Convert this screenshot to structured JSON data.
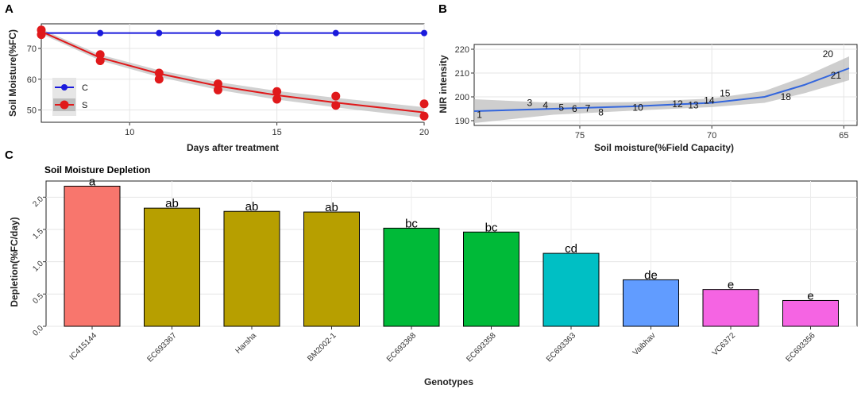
{
  "chart_data": [
    {
      "panel": "A",
      "type": "line",
      "title": "",
      "xlabel": "Days after treatment",
      "ylabel": "Soil Moisture(%FC)",
      "xlim": [
        7,
        20
      ],
      "ylim": [
        46,
        78
      ],
      "xticks": [
        10,
        15,
        20
      ],
      "yticks": [
        50,
        60,
        70
      ],
      "series": [
        {
          "name": "C",
          "color": "#1a1adc",
          "x": [
            7,
            9,
            11,
            13,
            15,
            17,
            20
          ],
          "y": [
            75,
            75,
            75,
            75,
            75,
            75,
            75
          ]
        },
        {
          "name": "S",
          "color": "#e0191b",
          "x": [
            7,
            7,
            9,
            9,
            11,
            11,
            13,
            13,
            15,
            15,
            17,
            17,
            20,
            20
          ],
          "y": [
            76,
            74.5,
            68,
            66,
            62,
            60,
            58.5,
            56.5,
            56,
            53.5,
            54.5,
            51.5,
            52,
            48
          ]
        }
      ],
      "fit_S": {
        "x": [
          7,
          9,
          11,
          13,
          15,
          17,
          20
        ],
        "y": [
          75.5,
          67,
          61.8,
          57.8,
          54.8,
          52.4,
          49.2
        ]
      },
      "legend": [
        "C",
        "S"
      ]
    },
    {
      "panel": "B",
      "type": "scatter",
      "title": "",
      "xlabel": "Soil moisture(%Field Capacity)",
      "ylabel": "NIR intensity",
      "xlim": [
        79,
        64.5
      ],
      "ylim": [
        188,
        222
      ],
      "xticks": [
        75,
        70,
        65
      ],
      "yticks": [
        190,
        200,
        210,
        220
      ],
      "points": [
        {
          "label": "1",
          "x": 78.8,
          "y": 192.5
        },
        {
          "label": "3",
          "x": 76.9,
          "y": 197.5
        },
        {
          "label": "4",
          "x": 76.3,
          "y": 196.5
        },
        {
          "label": "5",
          "x": 75.7,
          "y": 195.5
        },
        {
          "label": "6",
          "x": 75.2,
          "y": 195
        },
        {
          "label": "7",
          "x": 74.7,
          "y": 195.2
        },
        {
          "label": "8",
          "x": 74.2,
          "y": 193.5
        },
        {
          "label": "10",
          "x": 72.8,
          "y": 195.5
        },
        {
          "label": "12",
          "x": 71.3,
          "y": 197
        },
        {
          "label": "13",
          "x": 70.7,
          "y": 196.5
        },
        {
          "label": "14",
          "x": 70.1,
          "y": 198.5
        },
        {
          "label": "15",
          "x": 69.5,
          "y": 201.5
        },
        {
          "label": "18",
          "x": 67.2,
          "y": 200
        },
        {
          "label": "20",
          "x": 65.6,
          "y": 218
        },
        {
          "label": "21",
          "x": 65.3,
          "y": 209
        }
      ],
      "fit": {
        "x": [
          79,
          76,
          73,
          70,
          68,
          66.5,
          64.8
        ],
        "y": [
          194,
          195,
          196,
          197.5,
          200,
          205,
          212
        ]
      }
    },
    {
      "panel": "C",
      "type": "bar",
      "title": "Soil Moisture Depletion",
      "xlabel": "Genotypes",
      "ylabel": "Depletion(%FC/day)",
      "ylim": [
        0,
        2.25
      ],
      "yticks": [
        "0.0",
        "0.5",
        "1.0",
        "1.5",
        "2.0"
      ],
      "categories": [
        "IC415144",
        "EC693367",
        "Harsha",
        "BM2002-1",
        "EC693368",
        "EC693358",
        "EC693363",
        "Vaibhav",
        "VC6372",
        "EC693356"
      ],
      "values": [
        2.17,
        1.83,
        1.78,
        1.77,
        1.52,
        1.46,
        1.13,
        0.72,
        0.57,
        0.4
      ],
      "letters": [
        "a",
        "ab",
        "ab",
        "ab",
        "bc",
        "bc",
        "cd",
        "de",
        "e",
        "e"
      ],
      "colors": [
        "#f8766d",
        "#b79f00",
        "#b79f00",
        "#b79f00",
        "#00ba38",
        "#00ba38",
        "#00bfc4",
        "#619cff",
        "#f564e3",
        "#f564e3"
      ]
    }
  ],
  "panels": {
    "a": "A",
    "b": "B",
    "c": "C"
  }
}
